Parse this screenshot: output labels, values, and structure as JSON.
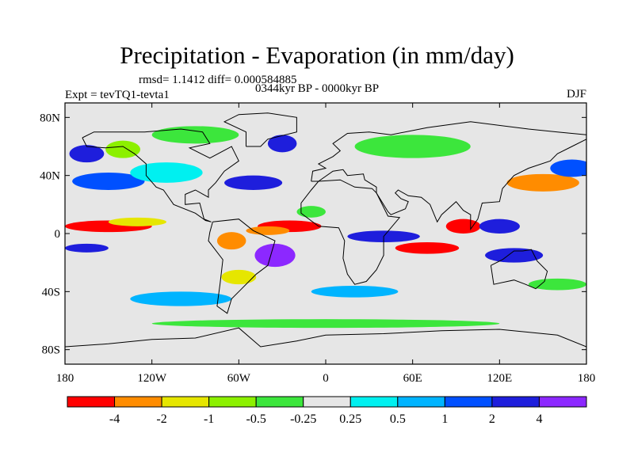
{
  "title": "Precipitation - Evaporation (in mm/day)",
  "stats": "rmsd= 1.1412  diff= 0.000584885",
  "experiment": "Expt = tevTQ1-tevta1",
  "period": "0344kyr BP - 0000kyr BP",
  "season": "DJF",
  "map": {
    "lon_range": [
      -180,
      180
    ],
    "lat_range": [
      -90,
      90
    ],
    "y_ticks": [
      {
        "lat": 80,
        "label": "80N"
      },
      {
        "lat": 40,
        "label": "40N"
      },
      {
        "lat": 0,
        "label": "0"
      },
      {
        "lat": -40,
        "label": "40S"
      },
      {
        "lat": -80,
        "label": "80S"
      }
    ],
    "x_ticks": [
      {
        "lon": -180,
        "label": "180"
      },
      {
        "lon": -120,
        "label": "120W"
      },
      {
        "lon": -60,
        "label": "60W"
      },
      {
        "lon": 0,
        "label": "0"
      },
      {
        "lon": 60,
        "label": "60E"
      },
      {
        "lon": 120,
        "label": "120E"
      },
      {
        "lon": 180,
        "label": "180"
      }
    ],
    "background_color": "#e6e6e6"
  },
  "colorbar": {
    "colors": [
      "#ff0000",
      "#ff8c00",
      "#e6e600",
      "#8cf000",
      "#3ce63c",
      "#e6e6e6",
      "#00f0f0",
      "#00b4ff",
      "#0050ff",
      "#1e1edc",
      "#8c28ff"
    ],
    "labels": [
      "-4",
      "-2",
      "-1",
      "-0.5",
      "-0.25",
      "0.25",
      "0.5",
      "1",
      "2",
      "4"
    ]
  },
  "field_patches": [
    {
      "lon": -150,
      "lat": 5,
      "rx": 30,
      "ry": 4,
      "c": 0
    },
    {
      "lon": -165,
      "lat": -10,
      "rx": 15,
      "ry": 3,
      "c": 9
    },
    {
      "lon": -130,
      "lat": 8,
      "rx": 20,
      "ry": 3,
      "c": 2
    },
    {
      "lon": -150,
      "lat": 36,
      "rx": 25,
      "ry": 6,
      "c": 8
    },
    {
      "lon": -110,
      "lat": 42,
      "rx": 25,
      "ry": 7,
      "c": 6
    },
    {
      "lon": -165,
      "lat": 55,
      "rx": 12,
      "ry": 6,
      "c": 9
    },
    {
      "lon": -140,
      "lat": 58,
      "rx": 12,
      "ry": 6,
      "c": 3
    },
    {
      "lon": -25,
      "lat": 5,
      "rx": 22,
      "ry": 4,
      "c": 0
    },
    {
      "lon": -40,
      "lat": 2,
      "rx": 15,
      "ry": 3,
      "c": 1
    },
    {
      "lon": -65,
      "lat": -5,
      "rx": 10,
      "ry": 6,
      "c": 1
    },
    {
      "lon": -35,
      "lat": -15,
      "rx": 14,
      "ry": 8,
      "c": 10
    },
    {
      "lon": -50,
      "lat": 35,
      "rx": 20,
      "ry": 5,
      "c": 9
    },
    {
      "lon": -30,
      "lat": 62,
      "rx": 10,
      "ry": 6,
      "c": 9
    },
    {
      "lon": -10,
      "lat": 15,
      "rx": 10,
      "ry": 4,
      "c": 4
    },
    {
      "lon": 40,
      "lat": -2,
      "rx": 25,
      "ry": 4,
      "c": 9
    },
    {
      "lon": 70,
      "lat": -10,
      "rx": 22,
      "ry": 4,
      "c": 0
    },
    {
      "lon": 95,
      "lat": 5,
      "rx": 12,
      "ry": 5,
      "c": 0
    },
    {
      "lon": 120,
      "lat": 5,
      "rx": 14,
      "ry": 5,
      "c": 9
    },
    {
      "lon": 150,
      "lat": 35,
      "rx": 25,
      "ry": 6,
      "c": 1
    },
    {
      "lon": 170,
      "lat": 45,
      "rx": 15,
      "ry": 6,
      "c": 8
    },
    {
      "lon": 130,
      "lat": -15,
      "rx": 20,
      "ry": 5,
      "c": 9
    },
    {
      "lon": 20,
      "lat": -40,
      "rx": 30,
      "ry": 4,
      "c": 7
    },
    {
      "lon": -100,
      "lat": -45,
      "rx": 35,
      "ry": 5,
      "c": 7
    },
    {
      "lon": 160,
      "lat": -35,
      "rx": 20,
      "ry": 4,
      "c": 4
    },
    {
      "lon": 60,
      "lat": 60,
      "rx": 40,
      "ry": 8,
      "c": 4
    },
    {
      "lon": -90,
      "lat": 68,
      "rx": 30,
      "ry": 6,
      "c": 4
    },
    {
      "lon": 0,
      "lat": -62,
      "rx": 120,
      "ry": 3,
      "c": 4
    },
    {
      "lon": -60,
      "lat": -30,
      "rx": 12,
      "ry": 5,
      "c": 2
    }
  ]
}
